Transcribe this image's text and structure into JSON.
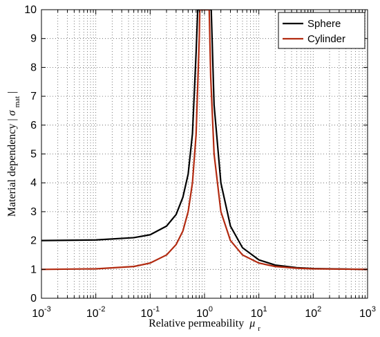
{
  "chart_data": {
    "type": "line",
    "title": "",
    "xlabel": "Relative permeability",
    "xlabel_symbol": "μ",
    "xlabel_sub": "r",
    "ylabel": "Material dependency |",
    "ylabel_symbol": "σ",
    "ylabel_sub": "mat",
    "ylabel_end": "|",
    "xscale": "log",
    "xlim": [
      0.001,
      1000
    ],
    "ylim": [
      0,
      10
    ],
    "grid": true,
    "legend_position": "top-right",
    "x_ticks": [
      {
        "base": "10",
        "exp": "-3"
      },
      {
        "base": "10",
        "exp": "-2"
      },
      {
        "base": "10",
        "exp": "-1"
      },
      {
        "base": "10",
        "exp": "0"
      },
      {
        "base": "10",
        "exp": "1"
      },
      {
        "base": "10",
        "exp": "2"
      },
      {
        "base": "10",
        "exp": "3"
      }
    ],
    "y_ticks": [
      "0",
      "1",
      "2",
      "3",
      "4",
      "5",
      "6",
      "7",
      "8",
      "9",
      "10"
    ],
    "series": [
      {
        "name": "Sphere",
        "color": "#000000",
        "points": [
          [
            0.001,
            2.0
          ],
          [
            0.01,
            2.02
          ],
          [
            0.05,
            2.1
          ],
          [
            0.1,
            2.2
          ],
          [
            0.2,
            2.5
          ],
          [
            0.3,
            2.9
          ],
          [
            0.4,
            3.5
          ],
          [
            0.5,
            4.3
          ],
          [
            0.6,
            5.7
          ],
          [
            0.7,
            8.5
          ],
          [
            0.75,
            10.0
          ],
          [
            1.33,
            10.0
          ],
          [
            1.5,
            6.7
          ],
          [
            2,
            4.0
          ],
          [
            3,
            2.5
          ],
          [
            5,
            1.75
          ],
          [
            10,
            1.33
          ],
          [
            20,
            1.15
          ],
          [
            50,
            1.06
          ],
          [
            100,
            1.03
          ],
          [
            1000,
            1.0
          ]
        ]
      },
      {
        "name": "Cylinder",
        "color": "#b22a10",
        "points": [
          [
            0.001,
            1.0
          ],
          [
            0.01,
            1.02
          ],
          [
            0.05,
            1.1
          ],
          [
            0.1,
            1.22
          ],
          [
            0.2,
            1.5
          ],
          [
            0.3,
            1.86
          ],
          [
            0.4,
            2.33
          ],
          [
            0.5,
            3.0
          ],
          [
            0.6,
            4.0
          ],
          [
            0.7,
            5.67
          ],
          [
            0.8,
            9.0
          ],
          [
            0.82,
            10.0
          ],
          [
            1.22,
            10.0
          ],
          [
            1.3,
            7.67
          ],
          [
            1.5,
            5.0
          ],
          [
            2,
            3.0
          ],
          [
            3,
            2.0
          ],
          [
            5,
            1.5
          ],
          [
            10,
            1.22
          ],
          [
            20,
            1.1
          ],
          [
            50,
            1.04
          ],
          [
            100,
            1.02
          ],
          [
            1000,
            1.0
          ]
        ]
      }
    ]
  }
}
